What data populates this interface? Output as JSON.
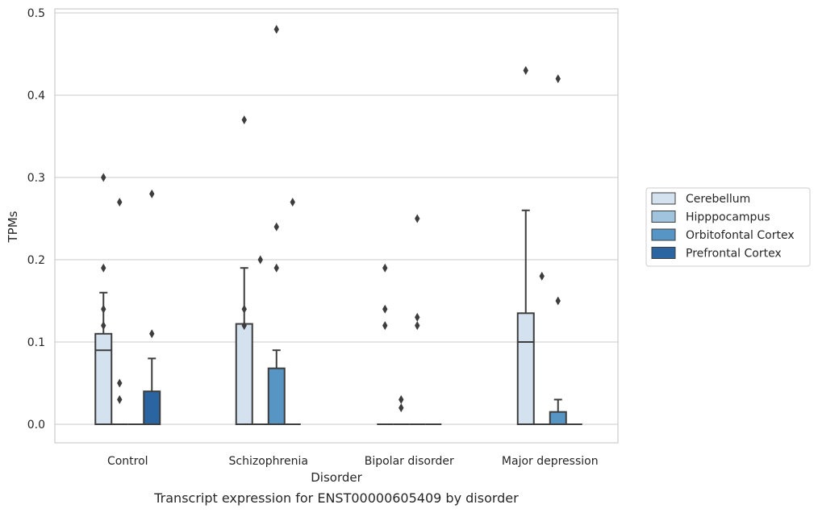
{
  "chart_data": {
    "type": "box",
    "xlabel": "Disorder",
    "ylabel": "TPMs",
    "caption": "Transcript expression for ENST00000605409 by disorder",
    "ylim": [
      -0.023,
      0.505
    ],
    "yticks": [
      "0.0",
      "0.1",
      "0.2",
      "0.3",
      "0.4",
      "0.5"
    ],
    "grid": true,
    "legend_position": "right",
    "categories": [
      "Control",
      "Schizophrenia",
      "Bipolar disorder",
      "Major depression"
    ],
    "series": [
      {
        "name": "Cerebellum",
        "color": "#d4e2f0",
        "boxes": [
          {
            "q1": 0.0,
            "median": 0.09,
            "q3": 0.11,
            "whisker_low": 0.0,
            "whisker_high": 0.16,
            "outliers": [
              0.3,
              0.19,
              0.14,
              0.12
            ]
          },
          {
            "q1": 0.0,
            "median": 0.0,
            "q3": 0.122,
            "whisker_low": 0.0,
            "whisker_high": 0.19,
            "outliers": [
              0.37,
              0.14,
              0.12
            ]
          },
          {
            "q1": 0.0,
            "median": 0.0,
            "q3": 0.0,
            "whisker_low": 0.0,
            "whisker_high": 0.0,
            "outliers": [
              0.19,
              0.14,
              0.12
            ]
          },
          {
            "q1": 0.0,
            "median": 0.1,
            "q3": 0.135,
            "whisker_low": 0.0,
            "whisker_high": 0.26,
            "outliers": [
              0.43
            ]
          }
        ]
      },
      {
        "name": "Hipppocampus",
        "color": "#a0c4de",
        "boxes": [
          {
            "q1": 0.0,
            "median": 0.0,
            "q3": 0.0,
            "whisker_low": 0.0,
            "whisker_high": 0.0,
            "outliers": [
              0.27,
              0.05,
              0.03
            ]
          },
          {
            "q1": 0.0,
            "median": 0.0,
            "q3": 0.0,
            "whisker_low": 0.0,
            "whisker_high": 0.0,
            "outliers": [
              0.2
            ]
          },
          {
            "q1": 0.0,
            "median": 0.0,
            "q3": 0.0,
            "whisker_low": 0.0,
            "whisker_high": 0.0,
            "outliers": [
              0.03,
              0.02
            ]
          },
          {
            "q1": 0.0,
            "median": 0.0,
            "q3": 0.0,
            "whisker_low": 0.0,
            "whisker_high": 0.0,
            "outliers": [
              0.18
            ]
          }
        ]
      },
      {
        "name": "Orbitofontal Cortex",
        "color": "#5795c4",
        "boxes": [
          {
            "q1": 0.0,
            "median": 0.0,
            "q3": 0.0,
            "whisker_low": 0.0,
            "whisker_high": 0.0,
            "outliers": []
          },
          {
            "q1": 0.0,
            "median": 0.0,
            "q3": 0.068,
            "whisker_low": 0.0,
            "whisker_high": 0.09,
            "outliers": [
              0.48,
              0.24,
              0.19
            ]
          },
          {
            "q1": 0.0,
            "median": 0.0,
            "q3": 0.0,
            "whisker_low": 0.0,
            "whisker_high": 0.0,
            "outliers": [
              0.25,
              0.13,
              0.12
            ]
          },
          {
            "q1": 0.0,
            "median": 0.0,
            "q3": 0.015,
            "whisker_low": 0.0,
            "whisker_high": 0.03,
            "outliers": [
              0.42,
              0.15
            ]
          }
        ]
      },
      {
        "name": "Prefrontal Cortex",
        "color": "#2b65a1",
        "boxes": [
          {
            "q1": 0.0,
            "median": 0.0,
            "q3": 0.04,
            "whisker_low": 0.0,
            "whisker_high": 0.08,
            "outliers": [
              0.28,
              0.11
            ]
          },
          {
            "q1": 0.0,
            "median": 0.0,
            "q3": 0.0,
            "whisker_low": 0.0,
            "whisker_high": 0.0,
            "outliers": [
              0.27
            ]
          },
          {
            "q1": 0.0,
            "median": 0.0,
            "q3": 0.0,
            "whisker_low": 0.0,
            "whisker_high": 0.0,
            "outliers": []
          },
          {
            "q1": 0.0,
            "median": 0.0,
            "q3": 0.0,
            "whisker_low": 0.0,
            "whisker_high": 0.0,
            "outliers": []
          }
        ]
      }
    ]
  }
}
